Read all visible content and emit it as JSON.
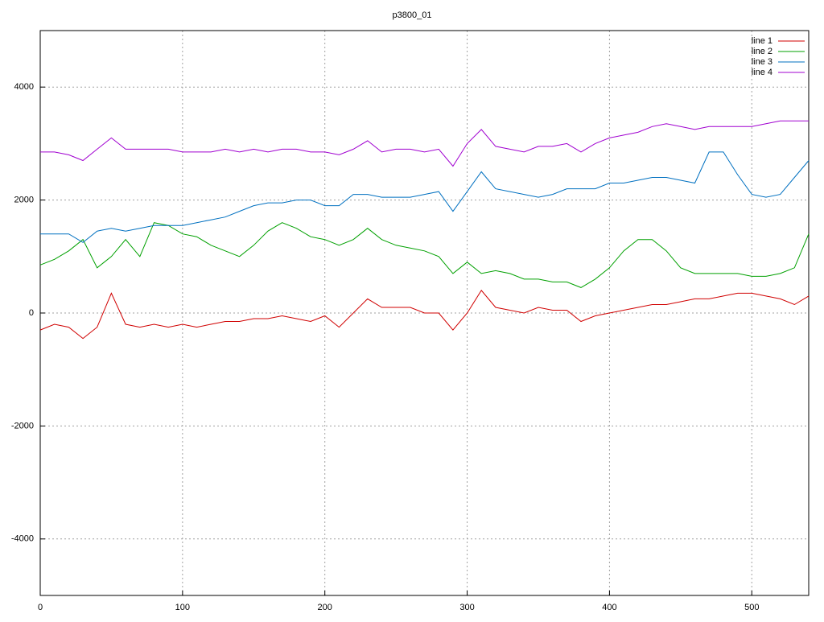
{
  "chart_data": {
    "type": "line",
    "title": "p3800_01",
    "x": [
      0,
      10,
      20,
      30,
      40,
      50,
      60,
      70,
      80,
      90,
      100,
      110,
      120,
      130,
      140,
      150,
      160,
      170,
      180,
      190,
      200,
      210,
      220,
      230,
      240,
      250,
      260,
      270,
      280,
      290,
      300,
      310,
      320,
      330,
      340,
      350,
      360,
      370,
      380,
      390,
      400,
      410,
      420,
      430,
      440,
      450,
      460,
      470,
      480,
      490,
      500,
      510,
      520,
      530,
      540
    ],
    "series": [
      {
        "name": "line 1",
        "color": "#d00000",
        "values": [
          -300,
          -200,
          -250,
          -450,
          -250,
          350,
          -200,
          -250,
          -200,
          -250,
          -200,
          -250,
          -200,
          -150,
          -150,
          -100,
          -100,
          -50,
          -100,
          -150,
          -50,
          -250,
          0,
          250,
          100,
          100,
          100,
          0,
          0,
          -300,
          0,
          400,
          100,
          50,
          0,
          100,
          50,
          50,
          -150,
          -50,
          0,
          50,
          100,
          150,
          150,
          200,
          250,
          250,
          300,
          350,
          350,
          300,
          250,
          150,
          300
        ]
      },
      {
        "name": "line 2",
        "color": "#00a000",
        "values": [
          850,
          950,
          1100,
          1300,
          800,
          1000,
          1300,
          1000,
          1600,
          1550,
          1400,
          1350,
          1200,
          1100,
          1000,
          1200,
          1450,
          1600,
          1500,
          1350,
          1300,
          1200,
          1300,
          1500,
          1300,
          1200,
          1150,
          1100,
          1000,
          700,
          900,
          700,
          750,
          700,
          600,
          600,
          550,
          550,
          450,
          600,
          800,
          1100,
          1300,
          1300,
          1100,
          800,
          700,
          700,
          700,
          700,
          650,
          650,
          700,
          800,
          1400
        ]
      },
      {
        "name": "line 3",
        "color": "#0070c0",
        "values": [
          1400,
          1400,
          1400,
          1250,
          1450,
          1500,
          1450,
          1500,
          1550,
          1550,
          1550,
          1600,
          1650,
          1700,
          1800,
          1900,
          1950,
          1950,
          2000,
          2000,
          1900,
          1900,
          2100,
          2100,
          2050,
          2050,
          2050,
          2100,
          2150,
          1800,
          2150,
          2500,
          2200,
          2150,
          2100,
          2050,
          2100,
          2200,
          2200,
          2200,
          2300,
          2300,
          2350,
          2400,
          2400,
          2350,
          2300,
          2850,
          2850,
          2450,
          2100,
          2050,
          2100,
          2400,
          2700
        ]
      },
      {
        "name": "line 4",
        "color": "#a000d0",
        "values": [
          2850,
          2850,
          2800,
          2700,
          2900,
          3100,
          2900,
          2900,
          2900,
          2900,
          2850,
          2850,
          2850,
          2900,
          2850,
          2900,
          2850,
          2900,
          2900,
          2850,
          2850,
          2800,
          2900,
          3050,
          2850,
          2900,
          2900,
          2850,
          2900,
          2600,
          3000,
          3250,
          2950,
          2900,
          2850,
          2950,
          2950,
          3000,
          2850,
          3000,
          3100,
          3150,
          3200,
          3300,
          3350,
          3300,
          3250,
          3300,
          3300,
          3300,
          3300,
          3350,
          3400,
          3400,
          3400
        ]
      }
    ],
    "xlim": [
      0,
      540
    ],
    "ylim": [
      -5000,
      5000
    ],
    "xticks": [
      0,
      100,
      200,
      300,
      400,
      500
    ],
    "yticks": [
      -4000,
      -2000,
      0,
      2000,
      4000
    ],
    "grid": true,
    "legend": "top-right"
  }
}
